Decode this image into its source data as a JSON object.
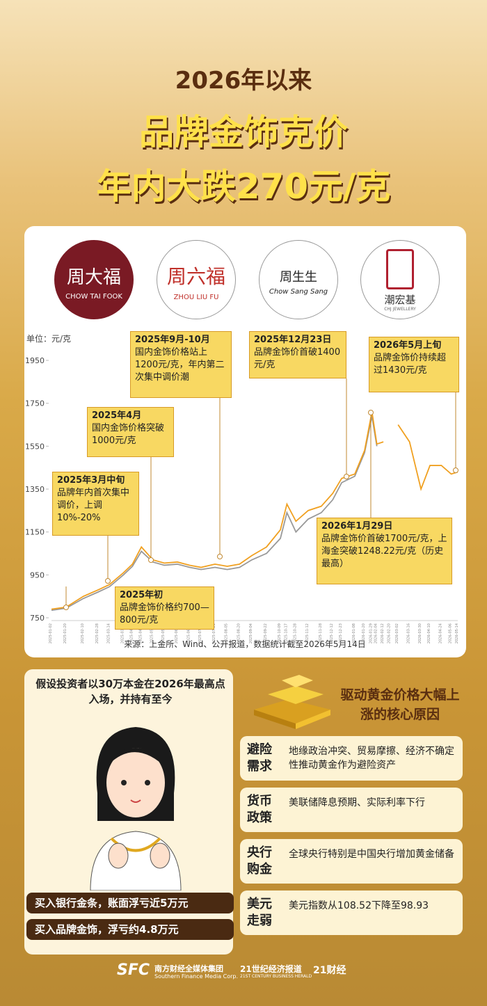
{
  "header": {
    "line1": "2026年以来",
    "line2": "品牌金饰克价",
    "line3": "年内大跌270元/克"
  },
  "brands": [
    {
      "name": "周大福",
      "latin": "CHOW TAI FOOK"
    },
    {
      "name": "周六福",
      "latin": "ZHOU LIU FU"
    },
    {
      "name": "周生生",
      "latin": "Chow Sang Sang"
    },
    {
      "name": "潮宏基",
      "latin": "CHJ JEWELLERY"
    }
  ],
  "chart_data": {
    "type": "line",
    "unit_label": "单位：元/克",
    "x": [
      "2025-01-02",
      "2025-01-20",
      "2025-02-10",
      "2025-02-28",
      "2025-03-14",
      "2025-03-31",
      "2025-04-11",
      "2025-04-22",
      "2025-05-06",
      "2025-05-20",
      "2025-06-05",
      "2025-06-20",
      "2025-07-04",
      "2025-07-21",
      "2025-08-05",
      "2025-08-20",
      "2025-09-04",
      "2025-09-22",
      "2025-10-09",
      "2025-10-17",
      "2025-10-28",
      "2025-11-12",
      "2025-11-28",
      "2025-12-12",
      "2025-12-23",
      "2026-01-08",
      "2026-01-20",
      "2026-01-29",
      "2026-02-04",
      "2026-02-12",
      "2026-02-20",
      "2026-03-02",
      "2026-03-16",
      "2026-03-30",
      "2026-04-10",
      "2026-04-24",
      "2026-05-06",
      "2026-05-14"
    ],
    "series": [
      {
        "color": "#999999",
        "values": [
          785,
          795,
          840,
          870,
          895,
          950,
          990,
          1060,
          1010,
          995,
          1000,
          985,
          975,
          985,
          975,
          985,
          1020,
          1050,
          1120,
          1240,
          1150,
          1210,
          1240,
          1300,
          1380,
          1410,
          1520,
          1690,
          1550,
          null,
          null,
          null,
          null,
          null,
          null,
          null,
          null,
          null
        ]
      },
      {
        "color": "#f0a020",
        "values": [
          790,
          800,
          850,
          880,
          905,
          960,
          1000,
          1080,
          1020,
          1005,
          1010,
          995,
          985,
          1000,
          990,
          1000,
          1040,
          1080,
          1160,
          1280,
          1200,
          1250,
          1270,
          1330,
          1400,
          1420,
          1530,
          1710,
          1560,
          1570,
          null,
          1650,
          1570,
          1350,
          1460,
          1460,
          1420,
          1430
        ]
      }
    ],
    "ylim": [
      750,
      1950
    ],
    "yticks": [
      750,
      950,
      1150,
      1350,
      1550,
      1750,
      1950
    ],
    "annotations": [
      {
        "title": "2025年3月中旬",
        "text": "品牌年内首次集中调价，上调10%-20%"
      },
      {
        "title": "2025年4月",
        "text": "国内金饰价格突破1000元/克"
      },
      {
        "title": "2025年9月-10月",
        "text": "国内金饰价格站上1200元/克，年内第二次集中调价潮"
      },
      {
        "title": "2025年12月23日",
        "text": "品牌金饰价首破1400元/克"
      },
      {
        "title": "2026年5月上旬",
        "text": "品牌金饰价持续超过1430元/克"
      },
      {
        "title": "2025年初",
        "text": "品牌金饰价格约700—800元/克"
      },
      {
        "title": "2026年1月29日",
        "text": "品牌金饰价首破1700元/克，上海金突破1248.22元/克（历史最高）"
      }
    ],
    "source": "来源：上金所、Wind、公开报道，数据统计截至2026年5月14日"
  },
  "investor": {
    "text": "假设投资者以30万本金在2026年最高点入场，并持有至今",
    "results": [
      "买入银行金条，账面浮亏近5万元",
      "买入品牌金饰，浮亏约4.8万元"
    ]
  },
  "reasons": {
    "title": "驱动黄金价格大幅上涨的核心原因",
    "items": [
      {
        "label": "避险需求",
        "text": "地缘政治冲突、贸易摩擦、经济不确定性推动黄金作为避险资产"
      },
      {
        "label": "货币政策",
        "text": "美联储降息预期、实际利率下行"
      },
      {
        "label": "央行购金",
        "text": "全球央行特别是中国央行增加黄金储备"
      },
      {
        "label": "美元走弱",
        "text": "美元指数从108.52下降至98.93"
      }
    ]
  },
  "footer": {
    "sfc": "SFC",
    "group": "南方财经全媒体集团",
    "group_en": "Southern Finance Media Corp.",
    "paper": "21世纪经济报道",
    "paper_en": "21ST CENTURY BUSINESS HERALD",
    "app": "21财经"
  }
}
